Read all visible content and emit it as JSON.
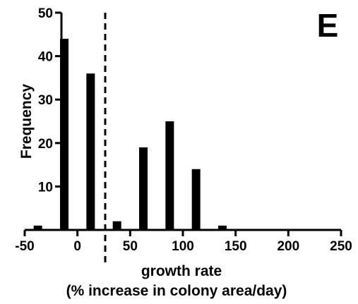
{
  "chart_data": {
    "type": "bar",
    "panel_label": "E",
    "xlabel": "growth rate",
    "xlabel_line2": "(% increase in colony area/day)",
    "ylabel": "Frequency",
    "xlim": [
      -50,
      250
    ],
    "ylim": [
      0,
      50
    ],
    "x_ticks": [
      "-50",
      "0",
      "50",
      "100",
      "150",
      "200",
      "250"
    ],
    "y_ticks": [
      "10",
      "20",
      "30",
      "40",
      "50"
    ],
    "threshold_line_x": 25,
    "grid": false,
    "bar_color": "#000000",
    "x": [
      -37.5,
      -12.5,
      12.5,
      37.5,
      62.5,
      87.5,
      112.5,
      137.5
    ],
    "values": [
      1,
      44,
      36,
      2,
      19,
      25,
      14,
      1
    ]
  }
}
